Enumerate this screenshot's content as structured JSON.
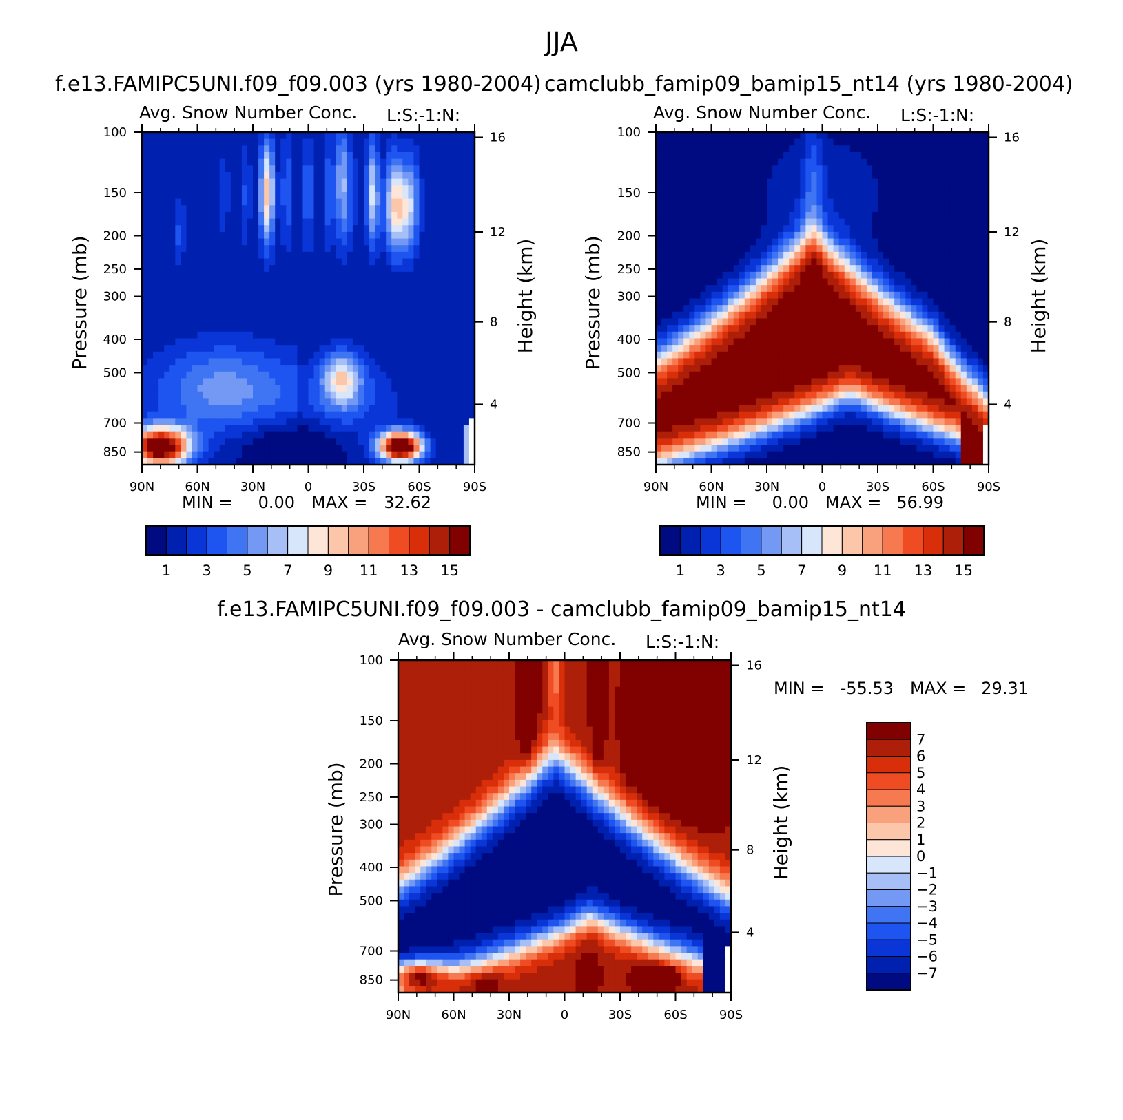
{
  "figure_title": "JJA",
  "chart_data": [
    {
      "type": "heatmap",
      "panel_id": "top-left",
      "case_title": "f.e13.FAMIPC5UNI.f09_f09.003 (yrs 1980-2004)",
      "subtitle_left": "Avg. Snow Number Conc.",
      "subtitle_right": "L:S:-1:N:",
      "ylabel": "Pressure (mb)",
      "ylabel_right": "Height (km)",
      "x_ticks": [
        "90N",
        "60N",
        "30N",
        "0",
        "30S",
        "60S",
        "90S"
      ],
      "xlim": [
        90,
        -90
      ],
      "y_ticks": [
        100,
        150,
        200,
        250,
        300,
        400,
        500,
        700,
        850
      ],
      "ylim": [
        100,
        925
      ],
      "y_scale": "log",
      "height_ticks": [
        16,
        12,
        8,
        4
      ],
      "stats": {
        "min_label": "MIN =",
        "min": "0.00",
        "max_label": "MAX =",
        "max": "32.62"
      },
      "colorbar": {
        "orientation": "horizontal",
        "colors": [
          "#000b81",
          "#0020b0",
          "#0a36d8",
          "#1e54ef",
          "#3f74f2",
          "#7399f4",
          "#a6c0f7",
          "#d7e6fb",
          "#fde6d8",
          "#fbc6aa",
          "#f9a07c",
          "#f67950",
          "#ef4c23",
          "#d92e0a",
          "#ad1f08",
          "#810000"
        ],
        "labels": [
          "1",
          "3",
          "5",
          "7",
          "9",
          "11",
          "13",
          "15"
        ]
      },
      "field": {
        "description_codes": "levels are colorbar indices 0-15",
        "blobs": [
          {
            "lat": 78,
            "p": 800,
            "sx": 13,
            "sy": 0.1,
            "amp": 20
          },
          {
            "lat": -50,
            "p": 820,
            "sx": 9,
            "sy": 0.08,
            "amp": 18
          },
          {
            "lat": -18,
            "p": 520,
            "sx": 7,
            "sy": 0.12,
            "amp": 7
          },
          {
            "lat": 50,
            "p": 600,
            "sx": 25,
            "sy": 0.2,
            "amp": 4
          },
          {
            "lat": 20,
            "p": 150,
            "sx": 4,
            "sy": 0.2,
            "amp": 6
          },
          {
            "lat": -18,
            "p": 140,
            "sx": 2,
            "sy": 0.25,
            "amp": 6
          },
          {
            "lat": -50,
            "p": 170,
            "sx": 6,
            "sy": 0.2,
            "amp": 8
          },
          {
            "lat": 0,
            "p": 150,
            "sx": 30,
            "sy": 0.25,
            "amp": 3
          }
        ]
      }
    },
    {
      "type": "heatmap",
      "panel_id": "top-right",
      "case_title": "camclubb_famip09_bamip15_nt14 (yrs 1980-2004)",
      "subtitle_left": "Avg. Snow Number Conc.",
      "subtitle_right": "L:S:-1:N:",
      "ylabel": "Pressure (mb)",
      "ylabel_right": "Height (km)",
      "x_ticks": [
        "90N",
        "60N",
        "30N",
        "0",
        "30S",
        "60S",
        "90S"
      ],
      "xlim": [
        90,
        -90
      ],
      "y_ticks": [
        100,
        150,
        200,
        250,
        300,
        400,
        500,
        700,
        850
      ],
      "ylim": [
        100,
        925
      ],
      "y_scale": "log",
      "height_ticks": [
        16,
        12,
        8,
        4
      ],
      "stats": {
        "min_label": "MIN =",
        "min": "0.00",
        "max_label": "MAX =",
        "max": "56.99"
      },
      "colorbar": {
        "orientation": "horizontal",
        "colors": [
          "#000b81",
          "#0020b0",
          "#0a36d8",
          "#1e54ef",
          "#3f74f2",
          "#7399f4",
          "#a6c0f7",
          "#d7e6fb",
          "#fde6d8",
          "#fbc6aa",
          "#f9a07c",
          "#f67950",
          "#ef4c23",
          "#d92e0a",
          "#ad1f08",
          "#810000"
        ],
        "labels": [
          "1",
          "3",
          "5",
          "7",
          "9",
          "11",
          "13",
          "15"
        ]
      }
    },
    {
      "type": "heatmap",
      "panel_id": "bottom-diff",
      "case_title": "f.e13.FAMIPC5UNI.f09_f09.003 - camclubb_famip09_bamip15_nt14",
      "subtitle_left": "Avg. Snow Number Conc.",
      "subtitle_right": "L:S:-1:N:",
      "ylabel": "Pressure (mb)",
      "ylabel_right": "Height (km)",
      "x_ticks": [
        "90N",
        "60N",
        "30N",
        "0",
        "30S",
        "60S",
        "90S"
      ],
      "xlim": [
        90,
        -90
      ],
      "y_ticks": [
        100,
        150,
        200,
        250,
        300,
        400,
        500,
        700,
        850
      ],
      "ylim": [
        100,
        925
      ],
      "y_scale": "log",
      "height_ticks": [
        16,
        12,
        8,
        4
      ],
      "stats": {
        "min_label": "MIN =",
        "min": "-55.53",
        "max_label": "MAX =",
        "max": "29.31"
      },
      "colorbar": {
        "orientation": "vertical",
        "colors": [
          "#000b81",
          "#0020b0",
          "#0a36d8",
          "#1e54ef",
          "#3f74f2",
          "#7399f4",
          "#a6c0f7",
          "#d7e6fb",
          "#fde6d8",
          "#fbc6aa",
          "#f9a07c",
          "#f67950",
          "#ef4c23",
          "#d92e0a",
          "#ad1f08",
          "#810000"
        ],
        "labels": [
          "7",
          "6",
          "5",
          "4",
          "3",
          "2",
          "1",
          "0",
          "-1",
          "-2",
          "-3",
          "-4",
          "-5",
          "-6",
          "-7"
        ]
      }
    }
  ]
}
